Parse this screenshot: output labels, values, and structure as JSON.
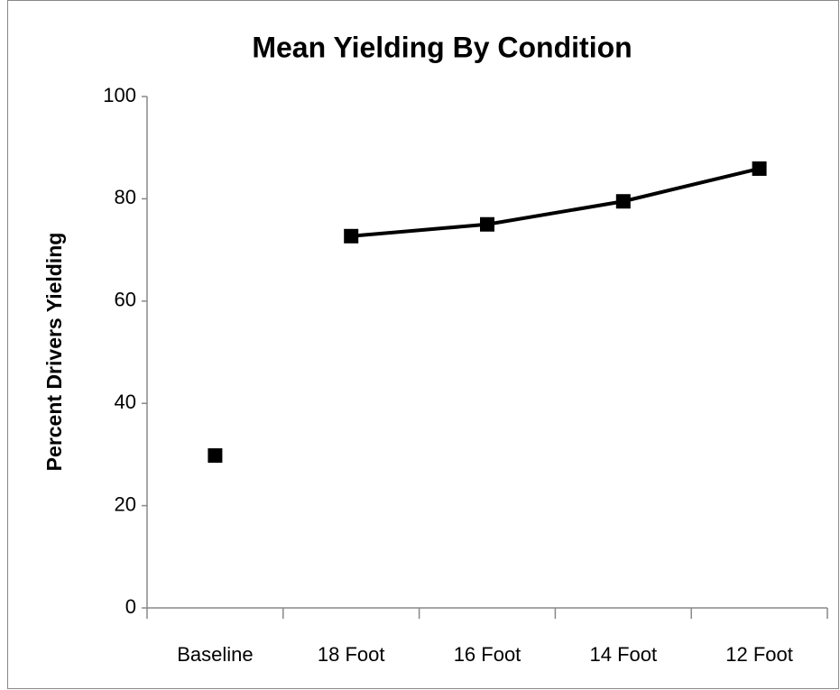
{
  "chart_data": {
    "type": "line",
    "title": "Mean Yielding By Condition",
    "y_label": "Percent Drivers Yielding",
    "categories": [
      "Baseline",
      "18 Foot",
      "16 Foot",
      "14 Foot",
      "12 Foot"
    ],
    "series": [
      {
        "color": "#000000",
        "values": [
          29.8,
          null,
          null,
          null,
          null
        ]
      },
      {
        "color": "#000000",
        "values": [
          null,
          72.7,
          75.0,
          79.5,
          85.9
        ]
      }
    ],
    "ylim": [
      0,
      100
    ],
    "yticks": [
      0,
      20,
      40,
      60,
      80,
      100
    ],
    "grid": false
  }
}
